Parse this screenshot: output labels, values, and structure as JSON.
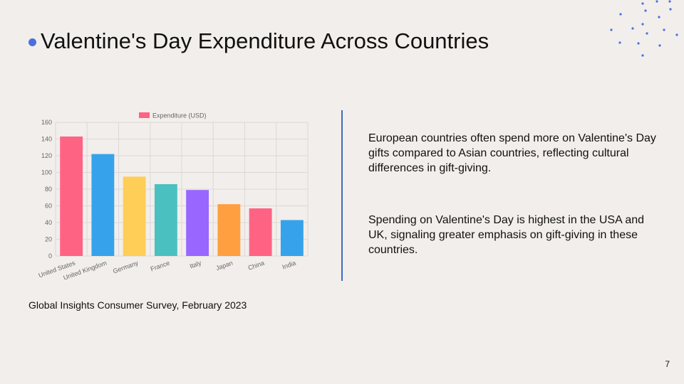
{
  "slide": {
    "title": "Valentine's Day Expenditure Across Countries",
    "accent_color": "#4a6fe0",
    "divider_color": "#3d6cc0",
    "notes": [
      "European countries often spend more on Valentine's Day gifts compared to Asian countries, reflecting cultural differences in gift-giving.",
      "Spending on Valentine's Day is highest in the USA and UK, signaling greater emphasis on gift-giving in these countries."
    ],
    "source": "Global Insights Consumer Survey, February 2023",
    "page_number": "7"
  },
  "chart_data": {
    "type": "bar",
    "categories": [
      "United States",
      "United Kingdom",
      "Germany",
      "France",
      "Italy",
      "Japan",
      "China",
      "India"
    ],
    "series": [
      {
        "name": "Expenditure (USD)",
        "values": [
          143,
          122,
          95,
          86,
          79,
          62,
          57,
          43
        ]
      }
    ],
    "bar_colors": [
      "#ff6384",
      "#36a2eb",
      "#ffce56",
      "#4bc0c0",
      "#9966ff",
      "#ff9f40",
      "#ff6384",
      "#36a2eb"
    ],
    "legend_color": "#ff6384",
    "ylim": [
      0,
      160
    ],
    "yticks": [
      0,
      20,
      40,
      60,
      80,
      100,
      120,
      140,
      160
    ],
    "grid": true,
    "legend": "top"
  }
}
